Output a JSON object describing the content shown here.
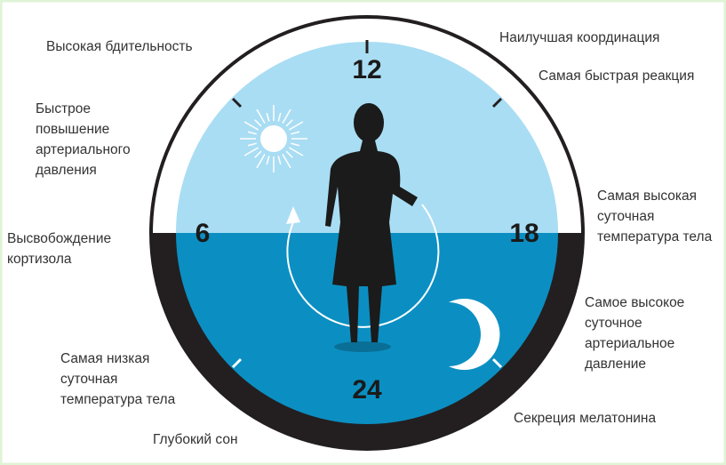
{
  "clock": {
    "hours": [
      "12",
      "6",
      "18",
      "24"
    ]
  },
  "labels": [
    {
      "lines": [
        "Высокая бдительность"
      ]
    },
    {
      "lines": [
        "Наилучшая координация"
      ]
    },
    {
      "lines": [
        "Самая быстрая реакция"
      ]
    },
    {
      "lines": [
        "Быстрое",
        "повышение",
        "артериального",
        "давления"
      ]
    },
    {
      "lines": [
        "Высвобождение",
        "кортизола"
      ]
    },
    {
      "lines": [
        "Самая высокая",
        "суточная",
        "температура тела"
      ]
    },
    {
      "lines": [
        "Самое высокое",
        "суточное",
        "артериальное",
        "давление"
      ]
    },
    {
      "lines": [
        "Самая низкая",
        "суточная",
        "температура тела"
      ]
    },
    {
      "lines": [
        "Секреция мелатонина"
      ]
    },
    {
      "lines": [
        "Глубокий сон"
      ]
    }
  ]
}
